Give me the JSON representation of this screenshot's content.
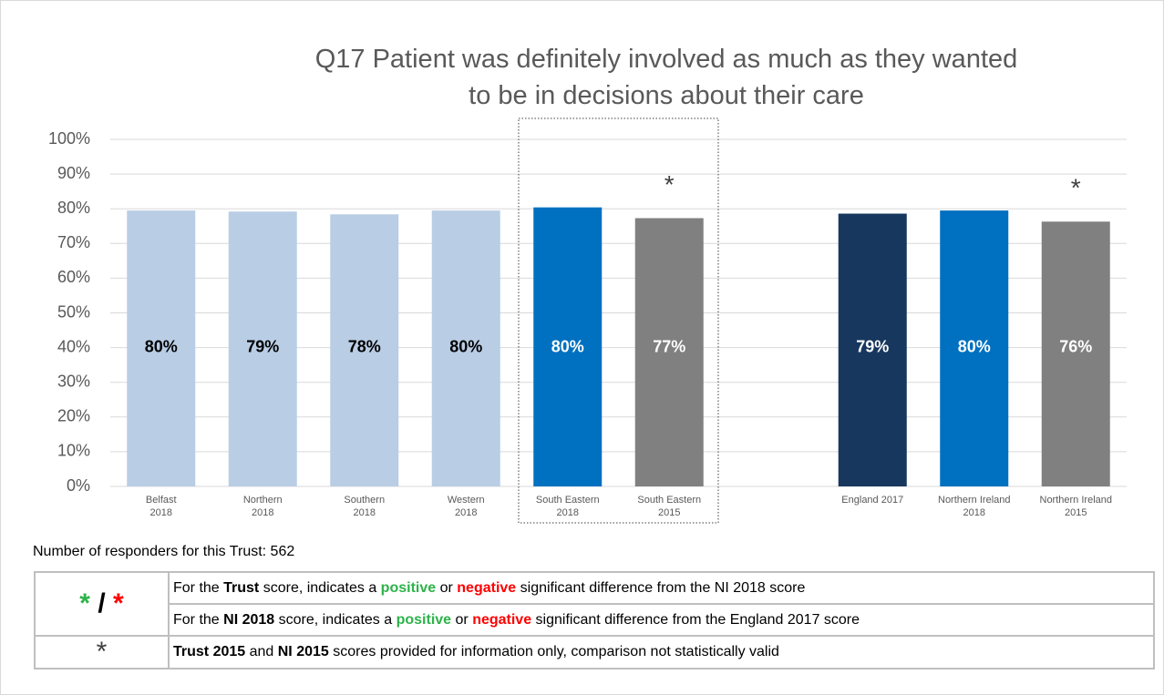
{
  "chart_data": {
    "type": "bar",
    "title": "Q17 Patient was definitely involved as much as they wanted to be in decisions about their care",
    "categories": [
      "Belfast\n2018",
      "Northern\n2018",
      "Southern\n2018",
      "Western\n2018",
      "South Eastern\n2018",
      "South Eastern\n2015",
      null,
      "England 2017",
      "Northern Ireland\n2018",
      "Northern Ireland\n2015"
    ],
    "values": [
      79.5,
      79.2,
      78.4,
      79.5,
      80.4,
      77.3,
      null,
      78.6,
      79.5,
      76.3
    ],
    "value_labels": [
      "80%",
      "79%",
      "78%",
      "80%",
      "80%",
      "77%",
      null,
      "79%",
      "80%",
      "76%"
    ],
    "colors": [
      "#b9cde5",
      "#b9cde5",
      "#b9cde5",
      "#b9cde5",
      "#0070c0",
      "#808080",
      null,
      "#17375e",
      "#0070c0",
      "#808080"
    ],
    "label_colors": [
      "#000000",
      "#000000",
      "#000000",
      "#000000",
      "#ffffff",
      "#ffffff",
      null,
      "#ffffff",
      "#ffffff",
      "#ffffff"
    ],
    "markers": [
      null,
      null,
      null,
      null,
      null,
      "*",
      null,
      null,
      null,
      "*"
    ],
    "ylim": [
      0,
      100
    ],
    "yticks": [
      {
        "value": 0,
        "label": "0%"
      },
      {
        "value": 10,
        "label": "10%"
      },
      {
        "value": 20,
        "label": "20%"
      },
      {
        "value": 30,
        "label": "30%"
      },
      {
        "value": 40,
        "label": "40%"
      },
      {
        "value": 50,
        "label": "50%"
      },
      {
        "value": 60,
        "label": "60%"
      },
      {
        "value": 70,
        "label": "70%"
      },
      {
        "value": 80,
        "label": "80%"
      },
      {
        "value": 90,
        "label": "90%"
      },
      {
        "value": 100,
        "label": "100%"
      }
    ],
    "grid": true
  },
  "note": "Number of responders for this Trust: 562",
  "legend_table": {
    "rows": [
      {
        "symbol": [
          {
            "text": "*",
            "style": "green"
          },
          {
            "text": "/",
            "style": "bold"
          },
          {
            "text": "*",
            "style": "red"
          }
        ],
        "lines": [
          [
            {
              "text": "For the ",
              "style": "plain"
            },
            {
              "text": "Trust",
              "style": "bold"
            },
            {
              "text": " score, indicates a ",
              "style": "plain"
            },
            {
              "text": "positive",
              "style": "green"
            },
            {
              "text": " or ",
              "style": "plain"
            },
            {
              "text": "negative",
              "style": "red"
            },
            {
              "text": " significant difference from the NI 2018 score",
              "style": "plain"
            }
          ],
          [
            {
              "text": "For the ",
              "style": "plain"
            },
            {
              "text": "NI 2018",
              "style": "bold"
            },
            {
              "text": " score, indicates a ",
              "style": "plain"
            },
            {
              "text": "positive",
              "style": "green"
            },
            {
              "text": " or ",
              "style": "plain"
            },
            {
              "text": "negative",
              "style": "red"
            },
            {
              "text": " significant difference from the England 2017 score",
              "style": "plain"
            }
          ]
        ]
      },
      {
        "symbol": [
          {
            "text": "*",
            "style": "dark"
          }
        ],
        "lines": [
          [
            {
              "text": "Trust 2015",
              "style": "bold"
            },
            {
              "text": " and  ",
              "style": "plain"
            },
            {
              "text": "NI 2015",
              "style": "bold"
            },
            {
              "text": " scores provided for information only, comparison not statistically valid",
              "style": "plain"
            }
          ]
        ]
      }
    ]
  }
}
